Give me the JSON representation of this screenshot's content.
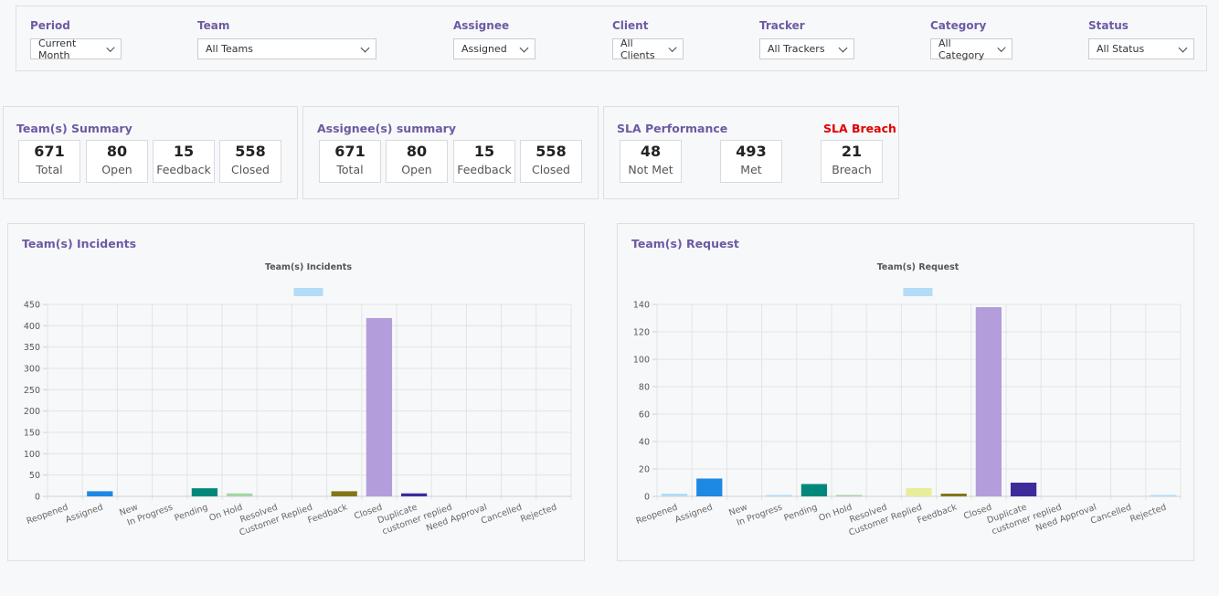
{
  "filters": [
    {
      "label": "Period",
      "value": "Current Month"
    },
    {
      "label": "Team",
      "value": "All Teams"
    },
    {
      "label": "Assignee",
      "value": "Assigned"
    },
    {
      "label": "Client",
      "value": "All Clients"
    },
    {
      "label": "Tracker",
      "value": "All Trackers"
    },
    {
      "label": "Category",
      "value": "All Category"
    },
    {
      "label": "Status",
      "value": "All Status"
    }
  ],
  "team_summary": {
    "title": "Team(s) Summary",
    "stats": [
      {
        "value": "671",
        "label": "Total"
      },
      {
        "value": "80",
        "label": "Open"
      },
      {
        "value": "15",
        "label": "Feedback"
      },
      {
        "value": "558",
        "label": "Closed"
      }
    ]
  },
  "assignee_summary": {
    "title": "Assignee(s) summary",
    "stats": [
      {
        "value": "671",
        "label": "Total"
      },
      {
        "value": "80",
        "label": "Open"
      },
      {
        "value": "15",
        "label": "Feedback"
      },
      {
        "value": "558",
        "label": "Closed"
      }
    ]
  },
  "sla": {
    "title": "SLA Performance",
    "breach_title": "SLA Breach",
    "breach_color": "#e00000",
    "stats": [
      {
        "value": "48",
        "label": "Not Met"
      },
      {
        "value": "493",
        "label": "Met"
      },
      {
        "value": "21",
        "label": "Breach"
      }
    ]
  },
  "incidents_card": {
    "title": "Team(s) Incidents"
  },
  "request_card": {
    "title": "Team(s) Request"
  },
  "chart_data": [
    {
      "type": "bar",
      "title": "Team(s) Incidents",
      "categories": [
        "Reopened",
        "Assigned",
        "New",
        "In Progress",
        "Pending",
        "On Hold",
        "Resolved",
        "Customer Replied",
        "Feedback",
        "Closed",
        "Duplicate",
        "customer replied",
        "Need Approval",
        "Cancelled",
        "Rejected"
      ],
      "values": [
        0,
        12,
        0,
        0,
        19,
        7,
        0,
        0,
        12,
        418,
        7,
        0,
        0,
        0,
        0
      ],
      "colors": [
        "#b3dcf7",
        "#1e88e5",
        "#cccccc",
        "#cccccc",
        "#00897b",
        "#a5d6a7",
        "#cccccc",
        "#e6ee9c",
        "#827717",
        "#b39ddb",
        "#3d2b9a",
        "#cccccc",
        "#cccccc",
        "#cccccc",
        "#b3dcf7"
      ],
      "legend_color": "#b3dcf7",
      "ylim": [
        0,
        450
      ],
      "yticks": [
        0,
        50,
        100,
        150,
        200,
        250,
        300,
        350,
        400,
        450
      ],
      "grid": true
    },
    {
      "type": "bar",
      "title": "Team(s) Request",
      "categories": [
        "Reopened",
        "Assigned",
        "New",
        "In Progress",
        "Pending",
        "On Hold",
        "Resolved",
        "Customer Replied",
        "Feedback",
        "Closed",
        "Duplicate",
        "customer replied",
        "Need Approval",
        "Cancelled",
        "Rejected"
      ],
      "values": [
        2,
        13,
        0,
        1,
        9,
        1,
        0,
        6,
        2,
        138,
        10,
        0,
        0,
        0,
        1
      ],
      "colors": [
        "#b3dcf7",
        "#1e88e5",
        "#cccccc",
        "#b3dcf7",
        "#00897b",
        "#a5d6a7",
        "#cccccc",
        "#e6ee9c",
        "#827717",
        "#b39ddb",
        "#3d2b9a",
        "#cccccc",
        "#cccccc",
        "#cccccc",
        "#b3dcf7"
      ],
      "legend_color": "#b3dcf7",
      "ylim": [
        0,
        140
      ],
      "yticks": [
        0,
        20,
        40,
        60,
        80,
        100,
        120,
        140
      ],
      "grid": true
    }
  ]
}
